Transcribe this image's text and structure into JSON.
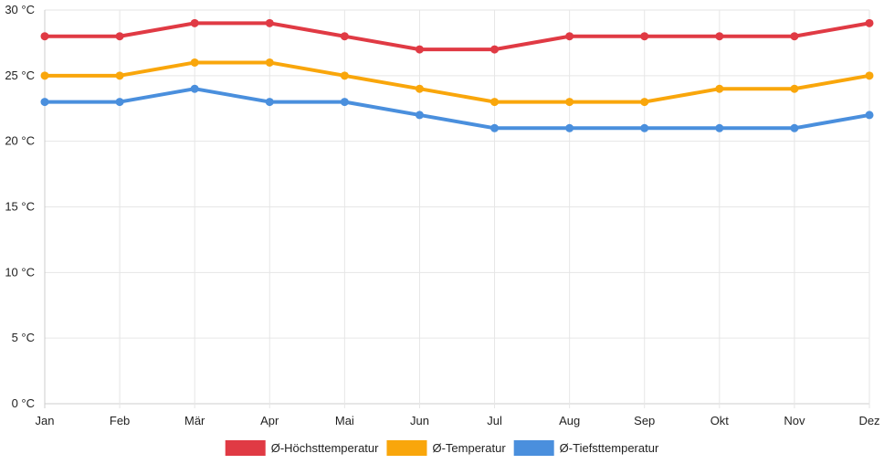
{
  "chart_data": {
    "type": "line",
    "title": "",
    "xlabel": "",
    "ylabel": "",
    "categories": [
      "Jan",
      "Feb",
      "Mär",
      "Apr",
      "Mai",
      "Jun",
      "Jul",
      "Aug",
      "Sep",
      "Okt",
      "Nov",
      "Dez"
    ],
    "ylim": [
      0,
      30
    ],
    "yticks": [
      0,
      5,
      10,
      15,
      20,
      25,
      30
    ],
    "ytick_labels": [
      "0 °C",
      "5 °C",
      "10 °C",
      "15 °C",
      "20 °C",
      "25 °C",
      "30 °C"
    ],
    "grid": true,
    "legend_position": "bottom-center",
    "series": [
      {
        "name": "Ø-Höchsttemperatur",
        "color": "#e03a44",
        "values": [
          28,
          28,
          29,
          29,
          28,
          27,
          27,
          28,
          28,
          28,
          28,
          29
        ]
      },
      {
        "name": "Ø-Temperatur",
        "color": "#f9a60b",
        "values": [
          25,
          25,
          26,
          26,
          25,
          24,
          23,
          23,
          23,
          24,
          24,
          25
        ]
      },
      {
        "name": "Ø-Tiefsttemperatur",
        "color": "#4a8fdd",
        "values": [
          23,
          23,
          24,
          23,
          23,
          22,
          21,
          21,
          21,
          21,
          21,
          22
        ]
      }
    ]
  }
}
